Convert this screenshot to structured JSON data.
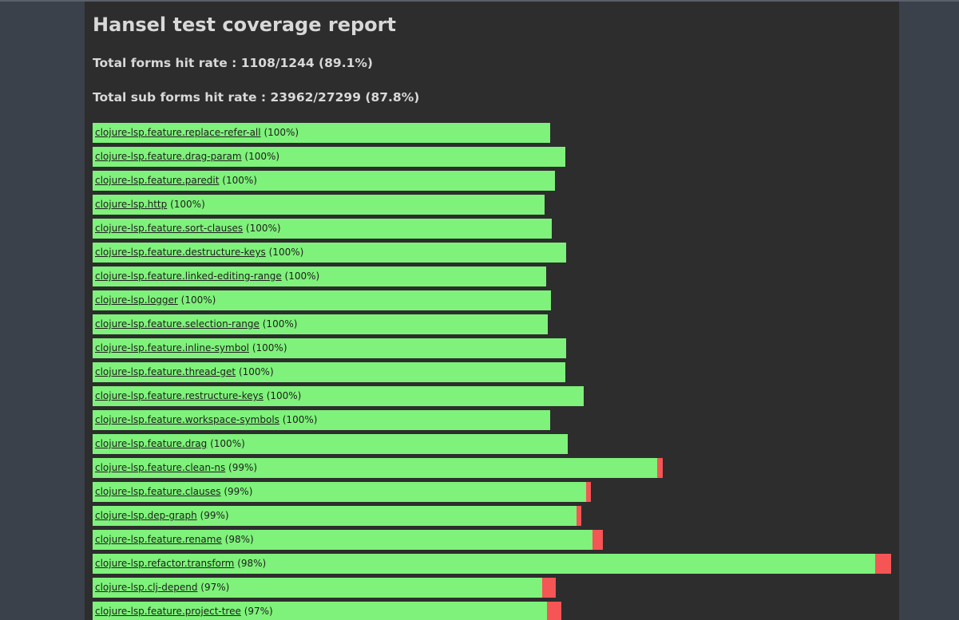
{
  "report": {
    "title": "Hansel test coverage report",
    "total_forms": "Total forms hit rate : 1108/1244 (89.1%)",
    "total_sub_forms": "Total sub forms hit rate : 23962/27299 (87.8%)"
  },
  "namespaces": [
    {
      "name": "clojure-lsp.feature.replace-refer-all",
      "pct": "(100%)",
      "hit_fraction": 1.0
    },
    {
      "name": "clojure-lsp.feature.drag-param",
      "pct": "(100%)",
      "hit_fraction": 1.0
    },
    {
      "name": "clojure-lsp.feature.paredit",
      "pct": "(100%)",
      "hit_fraction": 1.0
    },
    {
      "name": "clojure-lsp.http",
      "pct": "(100%)",
      "hit_fraction": 1.0
    },
    {
      "name": "clojure-lsp.feature.sort-clauses",
      "pct": "(100%)",
      "hit_fraction": 1.0
    },
    {
      "name": "clojure-lsp.feature.destructure-keys",
      "pct": "(100%)",
      "hit_fraction": 1.0
    },
    {
      "name": "clojure-lsp.feature.linked-editing-range",
      "pct": "(100%)",
      "hit_fraction": 1.0
    },
    {
      "name": "clojure-lsp.logger",
      "pct": "(100%)",
      "hit_fraction": 1.0
    },
    {
      "name": "clojure-lsp.feature.selection-range",
      "pct": "(100%)",
      "hit_fraction": 1.0
    },
    {
      "name": "clojure-lsp.feature.inline-symbol",
      "pct": "(100%)",
      "hit_fraction": 1.0
    },
    {
      "name": "clojure-lsp.feature.thread-get",
      "pct": "(100%)",
      "hit_fraction": 1.0
    },
    {
      "name": "clojure-lsp.feature.restructure-keys",
      "pct": "(100%)",
      "hit_fraction": 1.0
    },
    {
      "name": "clojure-lsp.feature.workspace-symbols",
      "pct": "(100%)",
      "hit_fraction": 1.0
    },
    {
      "name": "clojure-lsp.feature.drag",
      "pct": "(100%)",
      "hit_fraction": 1.0
    },
    {
      "name": "clojure-lsp.feature.clean-ns",
      "pct": "(99%)",
      "hit_fraction": 0.99
    },
    {
      "name": "clojure-lsp.feature.clauses",
      "pct": "(99%)",
      "hit_fraction": 0.99
    },
    {
      "name": "clojure-lsp.dep-graph",
      "pct": "(99%)",
      "hit_fraction": 0.99
    },
    {
      "name": "clojure-lsp.feature.rename",
      "pct": "(98%)",
      "hit_fraction": 0.98
    },
    {
      "name": "clojure-lsp.refactor.transform",
      "pct": "(98%)",
      "hit_fraction": 0.98
    },
    {
      "name": "clojure-lsp.clj-depend",
      "pct": "(97%)",
      "hit_fraction": 0.97
    },
    {
      "name": "clojure-lsp.feature.project-tree",
      "pct": "(97%)",
      "hit_fraction": 0.97
    }
  ],
  "colors": {
    "hit": "#7ef27a",
    "miss": "#f55555",
    "panel": "#2d2d2d",
    "background": "#3b414a"
  }
}
